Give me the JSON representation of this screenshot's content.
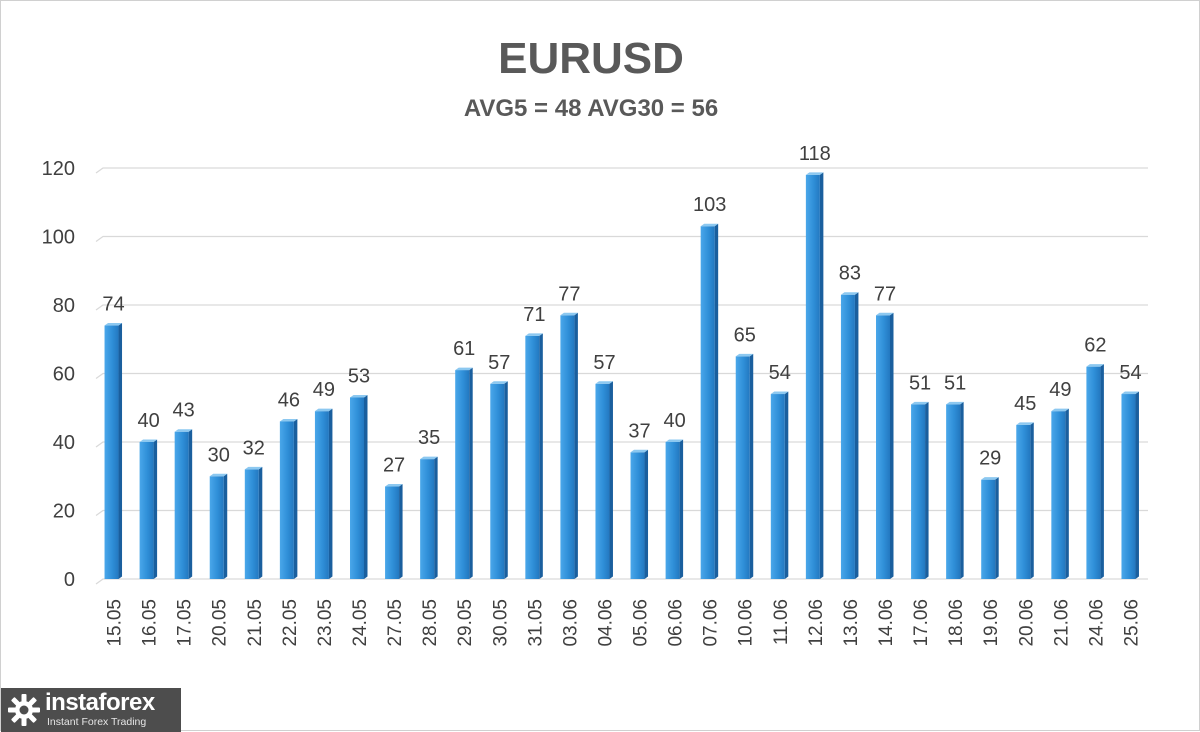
{
  "chart_data": {
    "type": "bar",
    "title": "EURUSD",
    "subtitle": "AVG5 = 48 AVG30 = 56",
    "categories": [
      "15.05",
      "16.05",
      "17.05",
      "20.05",
      "21.05",
      "22.05",
      "23.05",
      "24.05",
      "27.05",
      "28.05",
      "29.05",
      "30.05",
      "31.05",
      "03.06",
      "04.06",
      "05.06",
      "06.06",
      "07.06",
      "10.06",
      "11.06",
      "12.06",
      "13.06",
      "14.06",
      "17.06",
      "18.06",
      "19.06",
      "20.06",
      "21.06",
      "24.06",
      "25.06"
    ],
    "values": [
      74,
      40,
      43,
      30,
      32,
      46,
      49,
      53,
      27,
      35,
      61,
      57,
      71,
      77,
      57,
      37,
      40,
      103,
      65,
      54,
      118,
      83,
      77,
      51,
      51,
      29,
      45,
      49,
      62,
      54
    ],
    "ylim": [
      0,
      120
    ],
    "yticks": [
      0,
      20,
      40,
      60,
      80,
      100,
      120
    ],
    "xlabel": "",
    "ylabel": "",
    "grid": true,
    "legend": "none",
    "colors": {
      "bar_front": "#2f8fd8",
      "bar_side": "#1a5f9e",
      "bar_top": "#8cc8f0",
      "grid": "#d9d9d9",
      "text": "#595959"
    }
  },
  "logo": {
    "name": "instaforex",
    "tagline": "Instant Forex Trading",
    "icon": "gear-icon"
  }
}
